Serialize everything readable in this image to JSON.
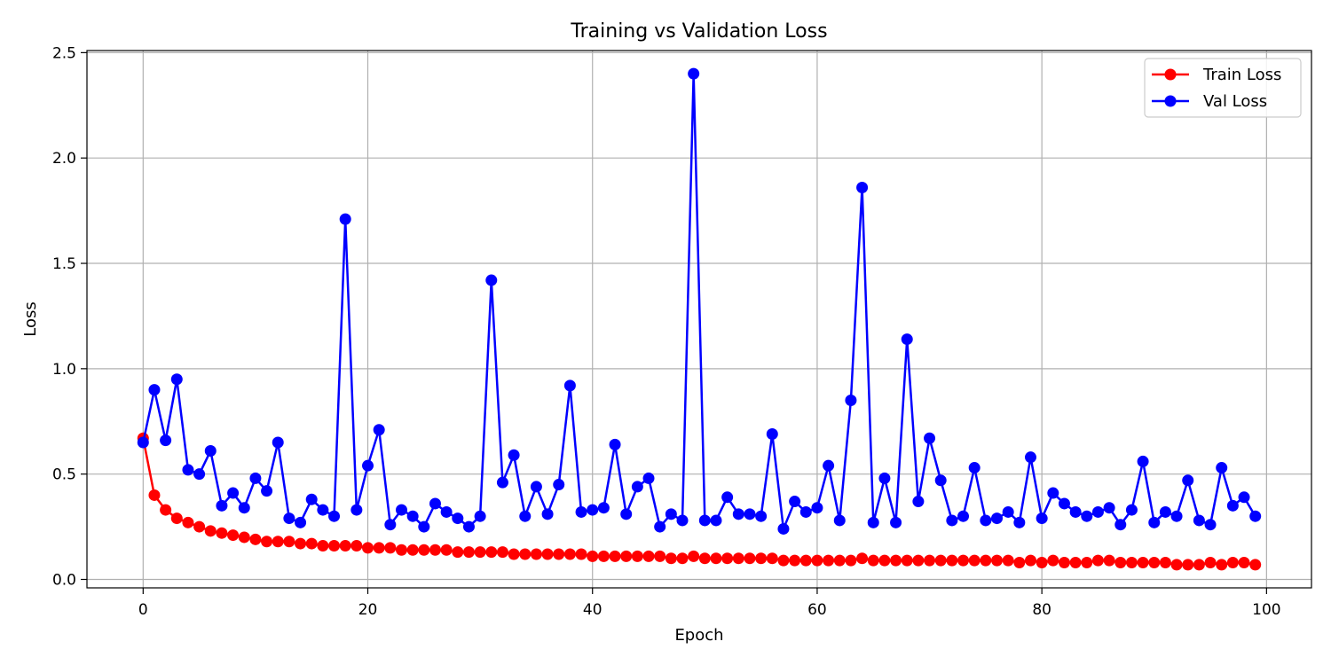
{
  "chart_data": {
    "type": "line",
    "title": "Training vs Validation Loss",
    "xlabel": "Epoch",
    "ylabel": "Loss",
    "xlim": [
      -5,
      104
    ],
    "ylim": [
      -0.04,
      2.51
    ],
    "x_ticks": [
      0,
      20,
      40,
      60,
      80,
      100
    ],
    "y_ticks": [
      0.0,
      0.5,
      1.0,
      1.5,
      2.0,
      2.5
    ],
    "x_tick_labels": [
      "0",
      "20",
      "40",
      "60",
      "80",
      "100"
    ],
    "y_tick_labels": [
      "0.0",
      "0.5",
      "1.0",
      "1.5",
      "2.0",
      "2.5"
    ],
    "grid": true,
    "legend_position": "top-right",
    "x": [
      0,
      1,
      2,
      3,
      4,
      5,
      6,
      7,
      8,
      9,
      10,
      11,
      12,
      13,
      14,
      15,
      16,
      17,
      18,
      19,
      20,
      21,
      22,
      23,
      24,
      25,
      26,
      27,
      28,
      29,
      30,
      31,
      32,
      33,
      34,
      35,
      36,
      37,
      38,
      39,
      40,
      41,
      42,
      43,
      44,
      45,
      46,
      47,
      48,
      49,
      50,
      51,
      52,
      53,
      54,
      55,
      56,
      57,
      58,
      59,
      60,
      61,
      62,
      63,
      64,
      65,
      66,
      67,
      68,
      69,
      70,
      71,
      72,
      73,
      74,
      75,
      76,
      77,
      78,
      79,
      80,
      81,
      82,
      83,
      84,
      85,
      86,
      87,
      88,
      89,
      90,
      91,
      92,
      93,
      94,
      95,
      96,
      97,
      98,
      99
    ],
    "series": [
      {
        "name": "Train Loss",
        "color": "#ff0000",
        "values": [
          0.67,
          0.4,
          0.33,
          0.29,
          0.27,
          0.25,
          0.23,
          0.22,
          0.21,
          0.2,
          0.19,
          0.18,
          0.18,
          0.18,
          0.17,
          0.17,
          0.16,
          0.16,
          0.16,
          0.16,
          0.15,
          0.15,
          0.15,
          0.14,
          0.14,
          0.14,
          0.14,
          0.14,
          0.13,
          0.13,
          0.13,
          0.13,
          0.13,
          0.12,
          0.12,
          0.12,
          0.12,
          0.12,
          0.12,
          0.12,
          0.11,
          0.11,
          0.11,
          0.11,
          0.11,
          0.11,
          0.11,
          0.1,
          0.1,
          0.11,
          0.1,
          0.1,
          0.1,
          0.1,
          0.1,
          0.1,
          0.1,
          0.09,
          0.09,
          0.09,
          0.09,
          0.09,
          0.09,
          0.09,
          0.1,
          0.09,
          0.09,
          0.09,
          0.09,
          0.09,
          0.09,
          0.09,
          0.09,
          0.09,
          0.09,
          0.09,
          0.09,
          0.09,
          0.08,
          0.09,
          0.08,
          0.09,
          0.08,
          0.08,
          0.08,
          0.09,
          0.09,
          0.08,
          0.08,
          0.08,
          0.08,
          0.08,
          0.07,
          0.07,
          0.07,
          0.08,
          0.07,
          0.08,
          0.08,
          0.07
        ]
      },
      {
        "name": "Val Loss",
        "color": "#0000ff",
        "values": [
          0.65,
          0.9,
          0.66,
          0.95,
          0.52,
          0.5,
          0.61,
          0.35,
          0.41,
          0.34,
          0.48,
          0.42,
          0.65,
          0.29,
          0.27,
          0.38,
          0.33,
          0.3,
          1.71,
          0.33,
          0.54,
          0.71,
          0.26,
          0.33,
          0.3,
          0.25,
          0.36,
          0.32,
          0.29,
          0.25,
          0.3,
          1.42,
          0.46,
          0.59,
          0.3,
          0.44,
          0.31,
          0.45,
          0.92,
          0.32,
          0.33,
          0.34,
          0.64,
          0.31,
          0.44,
          0.48,
          0.25,
          0.31,
          0.28,
          2.4,
          0.28,
          0.28,
          0.39,
          0.31,
          0.31,
          0.3,
          0.69,
          0.24,
          0.37,
          0.32,
          0.34,
          0.54,
          0.28,
          0.85,
          1.86,
          0.27,
          0.48,
          0.27,
          1.14,
          0.37,
          0.67,
          0.47,
          0.28,
          0.3,
          0.53,
          0.28,
          0.29,
          0.32,
          0.27,
          0.58,
          0.29,
          0.41,
          0.36,
          0.32,
          0.3,
          0.32,
          0.34,
          0.26,
          0.33,
          0.56,
          0.27,
          0.32,
          0.3,
          0.47,
          0.28,
          0.26,
          0.53,
          0.35,
          0.39,
          0.3
        ]
      }
    ]
  }
}
